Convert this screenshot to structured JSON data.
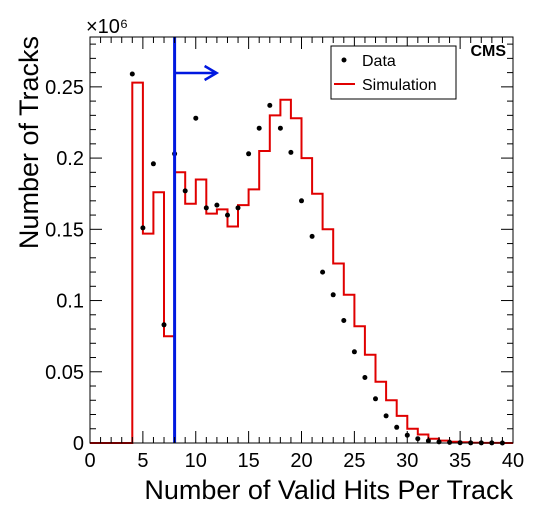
{
  "chart_data": {
    "type": "histogram",
    "title": "",
    "xlabel": "Number of Valid Hits Per Track",
    "ylabel": "Number of Tracks",
    "y_multiplier_label": "×10⁶",
    "xlim": [
      0,
      40
    ],
    "ylim": [
      0,
      0.285
    ],
    "x_ticks": [
      0,
      5,
      10,
      15,
      20,
      25,
      30,
      35,
      40
    ],
    "y_ticks": [
      0,
      0.05,
      0.1,
      0.15,
      0.2,
      0.25
    ],
    "y_tick_labels": [
      "0",
      "0.05",
      "0.1",
      "0.15",
      "0.2",
      "0.25"
    ],
    "experiment_label": "CMS",
    "legend_position": "top-right",
    "cut": {
      "x": 8,
      "color": "#0018e0"
    },
    "series": [
      {
        "name": "Data",
        "kind": "points",
        "color": "#000000",
        "x": [
          4,
          5,
          6,
          7,
          8,
          9,
          10,
          11,
          12,
          13,
          14,
          15,
          16,
          17,
          18,
          19,
          20,
          21,
          22,
          23,
          24,
          25,
          26,
          27,
          28,
          29,
          30,
          31,
          32,
          33,
          34,
          35,
          36,
          37,
          38,
          39
        ],
        "values": [
          0.259,
          0.151,
          0.196,
          0.083,
          0.203,
          0.177,
          0.228,
          0.165,
          0.167,
          0.16,
          0.165,
          0.203,
          0.221,
          0.237,
          0.221,
          0.204,
          0.17,
          0.145,
          0.12,
          0.104,
          0.086,
          0.064,
          0.046,
          0.031,
          0.019,
          0.011,
          0.0055,
          0.003,
          0.0015,
          0.0008,
          0.0004,
          0.0002,
          0.0001,
          0.0001,
          5e-05,
          3e-05
        ]
      },
      {
        "name": "Simulation",
        "kind": "step",
        "color": "#e00000",
        "bin_edges": [
          0,
          1,
          2,
          3,
          4,
          5,
          6,
          7,
          8,
          9,
          10,
          11,
          12,
          13,
          14,
          15,
          16,
          17,
          18,
          19,
          20,
          21,
          22,
          23,
          24,
          25,
          26,
          27,
          28,
          29,
          30,
          31,
          32,
          33,
          34,
          35,
          36,
          37,
          38,
          39,
          40
        ],
        "values": [
          0,
          0,
          0,
          0,
          0.253,
          0.147,
          0.176,
          0.075,
          0.19,
          0.168,
          0.185,
          0.161,
          0.164,
          0.152,
          0.167,
          0.178,
          0.205,
          0.23,
          0.241,
          0.228,
          0.2,
          0.175,
          0.15,
          0.126,
          0.104,
          0.082,
          0.062,
          0.043,
          0.03,
          0.019,
          0.01,
          0.006,
          0.003,
          0.0017,
          0.0009,
          0.0005,
          0.0002,
          0.0001,
          5e-05,
          2e-05
        ]
      }
    ]
  }
}
